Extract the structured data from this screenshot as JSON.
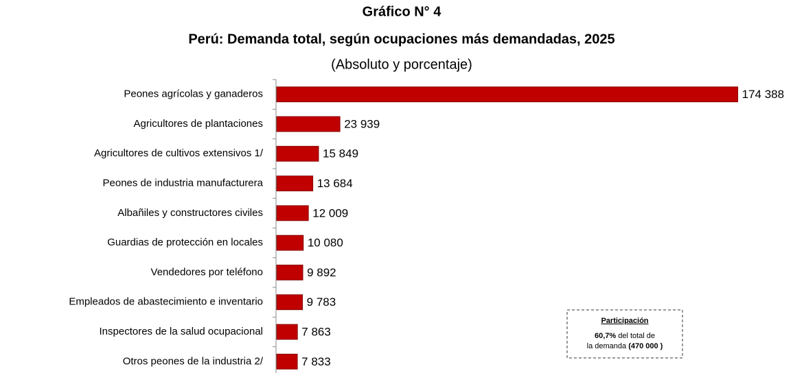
{
  "chart_data": {
    "type": "barh",
    "title": "Gráfico N° 4",
    "subtitle": "Perú: Demanda total, según ocupaciones más demandadas, 2025",
    "subtitle2": "(Absoluto y porcentaje)",
    "categories": [
      "Peones agrícolas y ganaderos",
      "Agricultores de plantaciones",
      "Agricultores de cultivos extensivos 1/",
      "Peones de industria manufacturera",
      "Albañiles y constructores civiles",
      "Guardias de protección en locales",
      "Vendedores por teléfono",
      "Empleados de abastecimiento e inventario",
      "Inspectores de la salud ocupacional",
      "Otros peones de la industria 2/"
    ],
    "values": [
      174388,
      23939,
      15849,
      13684,
      12009,
      10080,
      9892,
      9783,
      7863,
      7833
    ],
    "value_labels": [
      "174 388",
      "23 939",
      "15 849",
      "13 684",
      "12 009",
      "10 080",
      "9 892",
      "9 783",
      "7 863",
      "7 833"
    ],
    "color": "#c00000",
    "xlim": [
      0,
      175000
    ],
    "annotation": {
      "title": "Participación",
      "share": "60,7%",
      "share_text": " del total de",
      "total_text": "la demanda ",
      "total": "(470 000 )"
    }
  }
}
